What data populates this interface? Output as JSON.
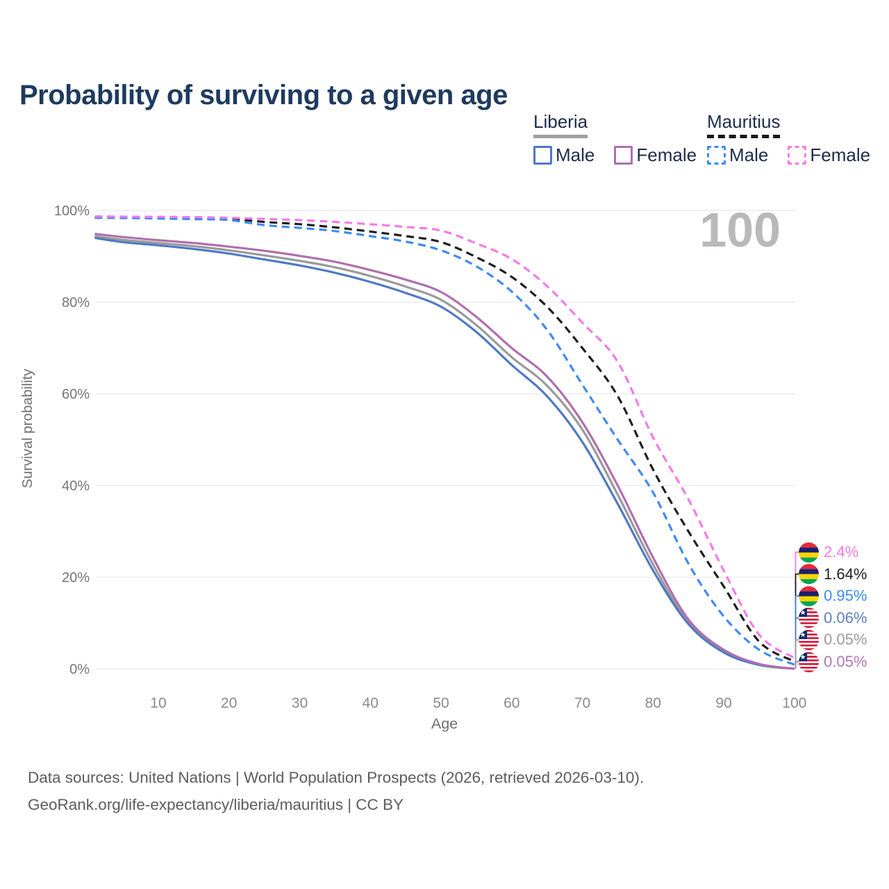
{
  "title": "Probability of surviving to a given age",
  "watermark": "100",
  "legend": {
    "liberia": {
      "title": "Liberia",
      "male": "Male",
      "female": "Female"
    },
    "mauritius": {
      "title": "Mauritius",
      "male": "Male",
      "female": "Female"
    }
  },
  "footer": {
    "line1": "Data sources: United Nations | World Population Prospects (2026, retrieved 2026-03-10).",
    "line2": "GeoRank.org/life-expectancy/liberia/mauritius | CC BY"
  },
  "colors": {
    "title": "#1e3a5f",
    "grid": "#ebebeb",
    "axis_text": "#757575",
    "watermark": "#b9b9b9",
    "liberia_male": "#4e79c4",
    "liberia_female": "#b06fad",
    "liberia_combined": "#9a9a9a",
    "mauritius_male": "#3d8af7",
    "mauritius_female": "#f879e8",
    "mauritius_combined": "#1f1f1f"
  },
  "chart_data": {
    "type": "line",
    "title": "Probability of surviving to a given age",
    "xlabel": "Age",
    "ylabel": "Survival probability",
    "xlim": [
      1,
      100
    ],
    "ylim": [
      0,
      100
    ],
    "grid": "horizontal",
    "legend_position": "top-right",
    "x_ticks": [
      10,
      20,
      30,
      40,
      50,
      60,
      70,
      80,
      90,
      100
    ],
    "y_ticks": [
      {
        "value": 0,
        "label": "0%"
      },
      {
        "value": 20,
        "label": "20%"
      },
      {
        "value": 40,
        "label": "40%"
      },
      {
        "value": 60,
        "label": "60%"
      },
      {
        "value": 80,
        "label": "80%"
      },
      {
        "value": 100,
        "label": "100%"
      }
    ],
    "ages": [
      1,
      5,
      10,
      15,
      20,
      25,
      30,
      35,
      40,
      45,
      50,
      55,
      60,
      65,
      70,
      75,
      80,
      85,
      90,
      95,
      100
    ],
    "series": [
      {
        "id": "liberia-combined",
        "name": "Liberia (combined)",
        "country": "Liberia",
        "style": "solid",
        "color": "#9a9a9a",
        "values": [
          94.4,
          93.6,
          92.9,
          92.2,
          91.3,
          90.2,
          89.0,
          87.6,
          85.7,
          83.4,
          80.5,
          75.0,
          68.0,
          61.8,
          52.2,
          38.0,
          22.8,
          10.2,
          3.9,
          1.0,
          0.05
        ]
      },
      {
        "id": "liberia-male",
        "name": "Liberia Male",
        "country": "Liberia",
        "style": "solid",
        "color": "#4e79c4",
        "values": [
          94.0,
          93.1,
          92.4,
          91.6,
          90.6,
          89.3,
          88.0,
          86.4,
          84.4,
          82.0,
          79.0,
          73.5,
          66.3,
          59.5,
          49.5,
          36.0,
          21.5,
          9.8,
          3.6,
          0.9,
          0.06
        ]
      },
      {
        "id": "liberia-female",
        "name": "Liberia Female",
        "country": "Liberia",
        "style": "solid",
        "color": "#b06fad",
        "values": [
          94.9,
          94.2,
          93.5,
          92.9,
          92.1,
          91.2,
          90.1,
          88.8,
          87.0,
          84.9,
          82.2,
          76.8,
          70.0,
          63.8,
          53.8,
          40.0,
          24.3,
          10.8,
          4.2,
          1.1,
          0.05
        ]
      },
      {
        "id": "mauritius-combined",
        "name": "Mauritius (combined)",
        "country": "Mauritius",
        "style": "dashed",
        "color": "#1f1f1f",
        "values": [
          98.55,
          98.5,
          98.4,
          98.3,
          98.15,
          97.5,
          97.0,
          96.3,
          95.4,
          94.4,
          93.1,
          89.8,
          85.5,
          79.0,
          70.0,
          59.5,
          43.5,
          30.0,
          18.0,
          6.0,
          1.64
        ]
      },
      {
        "id": "mauritius-male",
        "name": "Mauritius Male",
        "country": "Mauritius",
        "style": "dashed",
        "color": "#3d8af7",
        "values": [
          98.4,
          98.35,
          98.25,
          98.1,
          97.9,
          96.8,
          96.2,
          95.5,
          94.4,
          93.2,
          91.3,
          87.8,
          82.3,
          74.0,
          62.0,
          50.0,
          38.5,
          23.0,
          11.5,
          4.2,
          0.95
        ]
      },
      {
        "id": "mauritius-female",
        "name": "Mauritius Female",
        "country": "Mauritius",
        "style": "dashed",
        "color": "#f879e8",
        "values": [
          98.7,
          98.65,
          98.6,
          98.55,
          98.4,
          98.15,
          97.9,
          97.5,
          97.0,
          96.4,
          95.6,
          92.8,
          89.4,
          83.5,
          75.5,
          67.0,
          50.5,
          37.0,
          21.5,
          7.5,
          2.4
        ]
      }
    ],
    "end_labels": [
      {
        "id": "mauritius-female",
        "icon": "mauritius-flag-icon",
        "text": "2.4%",
        "value": 2.4,
        "color": "#f879e8"
      },
      {
        "id": "mauritius-combined",
        "icon": "mauritius-flag-icon",
        "text": "1.64%",
        "value": 1.64,
        "color": "#1f1f1f"
      },
      {
        "id": "mauritius-male",
        "icon": "mauritius-flag-icon",
        "text": "0.95%",
        "value": 0.95,
        "color": "#3d8af7"
      },
      {
        "id": "liberia-male",
        "icon": "liberia-flag-icon",
        "text": "0.06%",
        "value": 0.06,
        "color": "#5b7fb9"
      },
      {
        "id": "liberia-combined",
        "icon": "liberia-flag-icon",
        "text": "0.05%",
        "value": 0.05,
        "color": "#9a9a9a"
      },
      {
        "id": "liberia-female",
        "icon": "liberia-flag-icon",
        "text": "0.05%",
        "value": 0.05,
        "color": "#b377b3"
      }
    ]
  }
}
